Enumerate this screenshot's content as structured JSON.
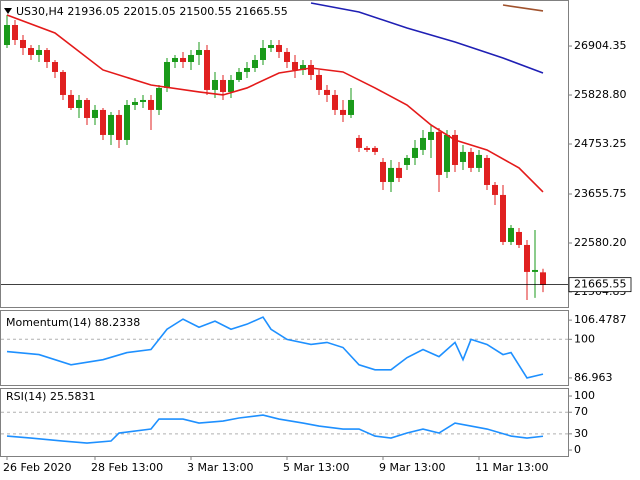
{
  "chart_data": [
    {
      "type": "candlestick",
      "title": "US30,H4",
      "categories": [
        "26 Feb 2020",
        null,
        null,
        null,
        null,
        null,
        null,
        null,
        null,
        null,
        null,
        "28 Feb 13:00",
        null,
        null,
        null,
        null,
        null,
        null,
        null,
        null,
        null,
        null,
        null,
        "3 Mar 13:00",
        null,
        null,
        null,
        null,
        null,
        null,
        null,
        null,
        null,
        null,
        null,
        "5 Mar 13:00",
        null,
        null,
        null,
        null,
        null,
        null,
        null,
        null,
        null,
        null,
        null,
        "9 Mar 13:00",
        null,
        null,
        null,
        null,
        null,
        null,
        null,
        null,
        null,
        null,
        null,
        "11 Mar 13:00",
        null,
        null,
        null,
        null,
        null,
        null,
        null,
        null
      ],
      "open": [
        26927,
        27366,
        27037,
        26861,
        26708,
        26817,
        26554,
        26335,
        25830,
        25544,
        25720,
        25325,
        25501,
        24952,
        25391,
        24842,
        25610,
        25676,
        25720,
        25501,
        25984,
        26554,
        26642,
        26554,
        26708,
        26817,
        25940,
        26159,
        25896,
        26159,
        26335,
        26422,
        26598,
        26861,
        26927,
        26774,
        26554,
        26379,
        26488,
        26269,
        25940,
        25830,
        25501,
        25391,
        24886,
        24667,
        24667,
        24359,
        23920,
        24228,
        24293,
        24447,
        24623,
        24842,
        25018,
        24140,
        24952,
        24359,
        24579,
        24228,
        24447,
        23854,
        23635,
        22603,
        22822,
        22537,
        21945,
        21936.05
      ],
      "high": [
        27586,
        27476,
        27147,
        26927,
        26927,
        26861,
        26598,
        26379,
        25940,
        25830,
        25764,
        25610,
        25544,
        25457,
        25501,
        25720,
        25764,
        25830,
        25830,
        26049,
        26642,
        26708,
        26774,
        26817,
        26993,
        26927,
        26335,
        26269,
        26269,
        26422,
        26554,
        26708,
        27037,
        27037,
        27037,
        26861,
        26708,
        26598,
        26598,
        26379,
        26049,
        25940,
        25720,
        25984,
        24952,
        24711,
        24711,
        24447,
        24403,
        24359,
        24513,
        24842,
        25062,
        25171,
        25106,
        25062,
        25062,
        24732,
        24667,
        24623,
        24513,
        23920,
        23854,
        22976,
        22910,
        22647,
        22866,
        22015.05
      ],
      "low": [
        26861,
        26927,
        26708,
        26598,
        26554,
        26422,
        26203,
        25720,
        25501,
        25325,
        25171,
        25171,
        24842,
        24732,
        24667,
        24732,
        25501,
        25544,
        25062,
        25391,
        25896,
        26422,
        26422,
        26379,
        26488,
        25830,
        25764,
        25720,
        25764,
        26115,
        26203,
        26335,
        26488,
        26774,
        26642,
        26422,
        26203,
        26269,
        26159,
        25830,
        25676,
        25391,
        25237,
        25325,
        24579,
        24579,
        24513,
        23745,
        23701,
        23920,
        24184,
        24293,
        24513,
        24447,
        23701,
        24008,
        24140,
        24184,
        24140,
        24140,
        23745,
        23415,
        22537,
        22537,
        22471,
        21330,
        21374,
        21500.55
      ],
      "close": [
        27366,
        27037,
        26861,
        26708,
        26817,
        26554,
        26335,
        25830,
        25544,
        25720,
        25325,
        25501,
        24952,
        25391,
        24842,
        25610,
        25676,
        25720,
        25501,
        25984,
        26554,
        26642,
        26554,
        26708,
        26817,
        25940,
        26159,
        25896,
        26159,
        26335,
        26422,
        26598,
        26861,
        26927,
        26774,
        26554,
        26379,
        26488,
        26269,
        25940,
        25830,
        25501,
        25391,
        25720,
        24667,
        24623,
        24579,
        23920,
        24228,
        24008,
        24447,
        24667,
        24886,
        25018,
        24074,
        24952,
        24293,
        24579,
        24228,
        24513,
        23854,
        23635,
        22603,
        22910,
        22537,
        21945,
        21988,
        21665.55
      ],
      "up_color": "#1a9a1a",
      "down_color": "#e02020",
      "series": [
        {
          "color": "#e41a1a",
          "x": [
            0,
            6,
            12,
            18,
            24,
            27,
            30,
            34,
            38,
            42,
            46,
            50,
            53,
            56,
            60,
            64,
            67
          ],
          "values": [
            27586,
            27191,
            26379,
            26049,
            25896,
            25830,
            25984,
            26313,
            26422,
            26335,
            25984,
            25610,
            25171,
            24842,
            24623,
            24228,
            23701
          ]
        },
        {
          "color": "#1f1fb4",
          "x": [
            38,
            44,
            50,
            56,
            62,
            67
          ],
          "values": [
            27849,
            27652,
            27300,
            26993,
            26642,
            26313
          ]
        },
        {
          "color": "#a0522d",
          "x": [
            62,
            67
          ],
          "values": [
            27805,
            27674
          ]
        }
      ],
      "ylim": [
        21175,
        27915
      ],
      "yticks": [
        26904.35,
        {
          "value": 25828.8,
          "label": "25828.80"
        },
        24753.25,
        23655.75,
        {
          "value": 22580.2,
          "label": "22580.20"
        },
        21504.85
      ]
    },
    {
      "type": "line",
      "title": "Momentum(14)",
      "color": "#1e90ff",
      "x": [
        0,
        4,
        8,
        12,
        15,
        18,
        20,
        22,
        24,
        26,
        28,
        30,
        32,
        33,
        35,
        38,
        40,
        42,
        44,
        46,
        48,
        50,
        52,
        54,
        56,
        57,
        58,
        60,
        62,
        63,
        65,
        67
      ],
      "values": [
        95.87,
        94.84,
        91.41,
        93.12,
        95.52,
        96.55,
        103.4,
        106.82,
        104.08,
        106.14,
        103.4,
        105.11,
        107.51,
        103.4,
        99.97,
        98.26,
        98.95,
        97.23,
        91.41,
        89.7,
        89.7,
        93.81,
        96.55,
        94.15,
        98.95,
        93.12,
        99.97,
        98.26,
        94.84,
        95.52,
        86.96,
        88.2338
      ],
      "ylim": [
        84.57,
        109.56
      ],
      "yticks": [
        106.4787,
        100,
        86.963
      ],
      "levels": [
        100
      ]
    },
    {
      "type": "line",
      "title": "RSI(14)",
      "color": "#1e90ff",
      "x": [
        0,
        3,
        7,
        10,
        13,
        14,
        18,
        19,
        22,
        24,
        27,
        29,
        32,
        34,
        37,
        39,
        42,
        44,
        46,
        48,
        50,
        52,
        54,
        56,
        58,
        60,
        63,
        65,
        67
      ],
      "values": [
        25.9,
        22.2,
        16.7,
        13.0,
        16.7,
        31.5,
        38.9,
        57.4,
        57.4,
        50.0,
        53.7,
        59.3,
        64.8,
        57.4,
        50.0,
        44.4,
        38.9,
        38.9,
        25.9,
        22.2,
        31.5,
        38.9,
        31.5,
        50.0,
        44.4,
        38.9,
        25.9,
        22.2,
        25.5831
      ],
      "ylim": [
        -11,
        113
      ],
      "yticks": [
        100,
        70,
        30,
        0
      ],
      "levels": [
        70,
        30
      ]
    }
  ]
}
